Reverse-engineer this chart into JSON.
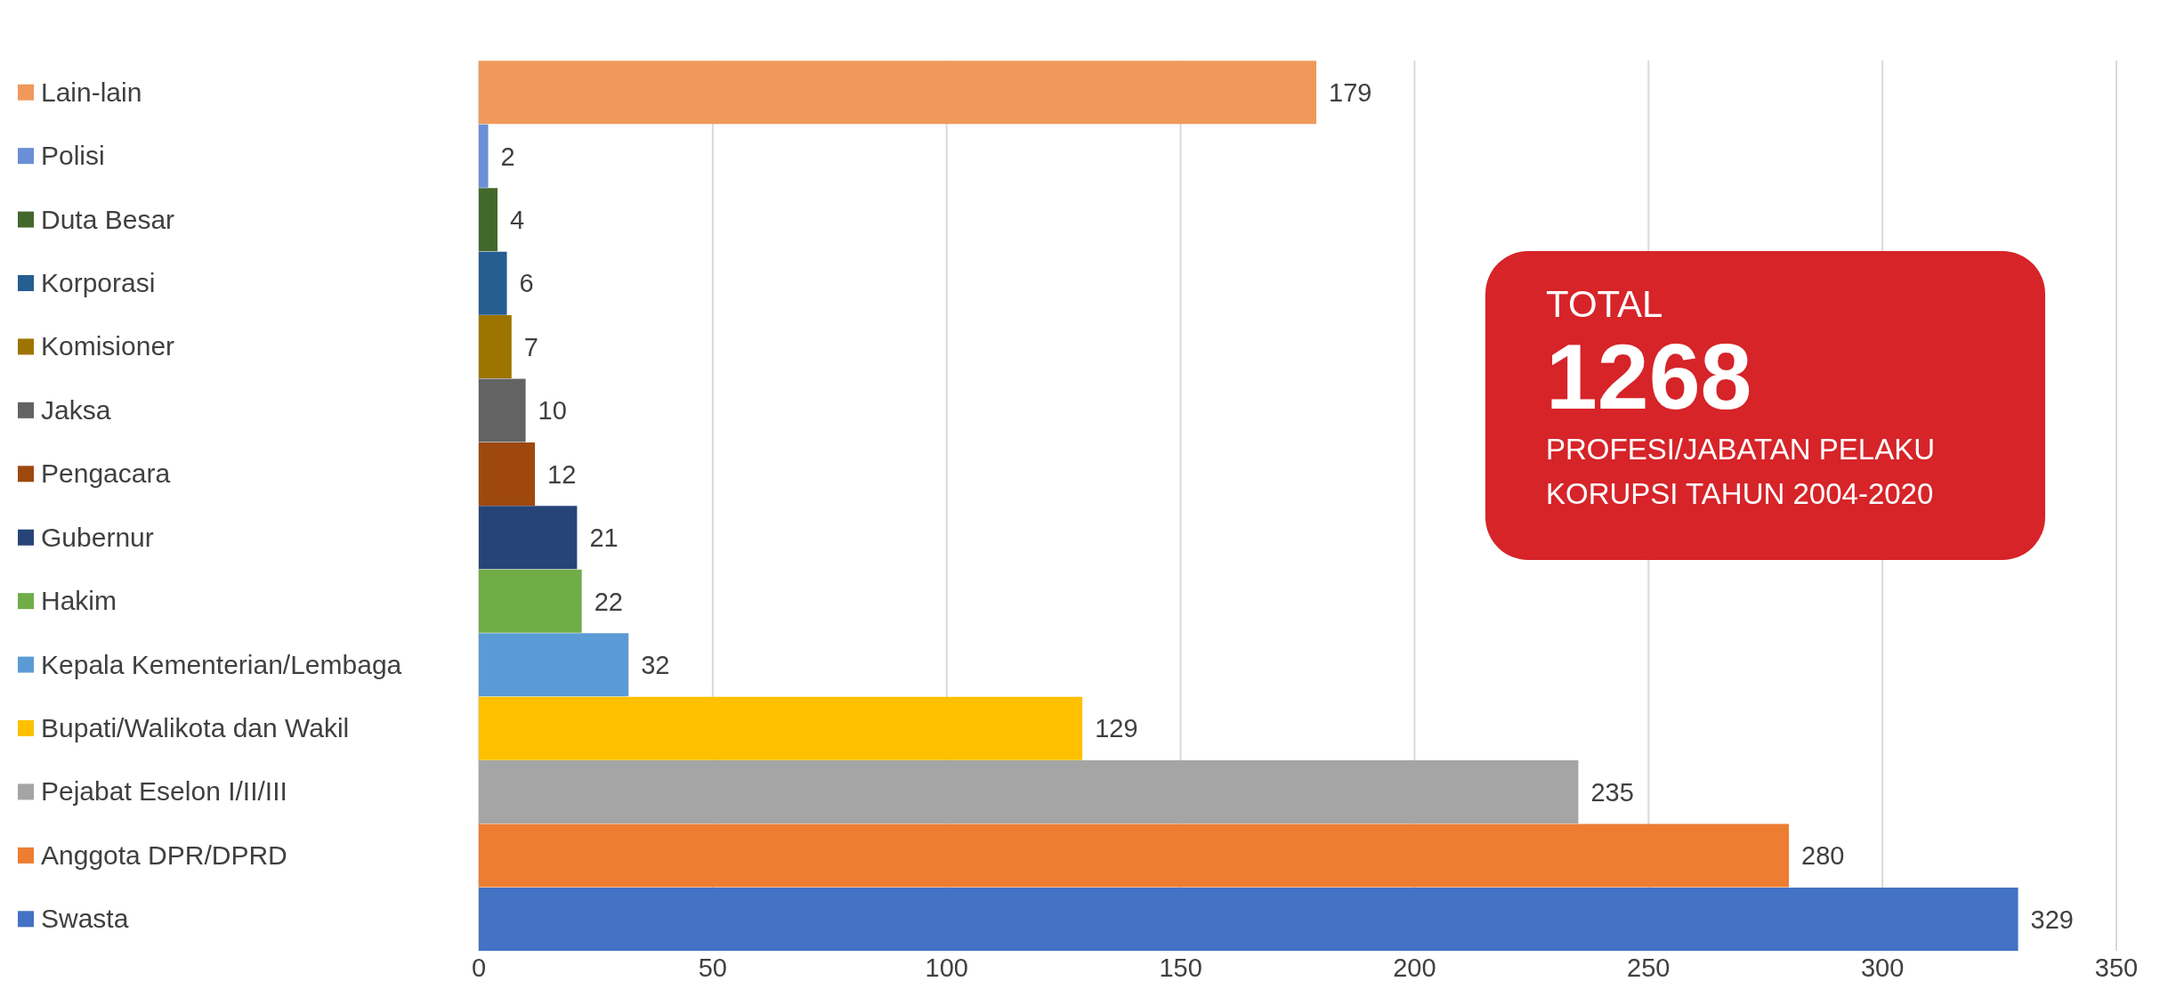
{
  "chart_data": {
    "type": "bar",
    "orientation": "horizontal",
    "categories": [
      "Lain-lain",
      "Polisi",
      "Duta Besar",
      "Korporasi",
      "Komisioner",
      "Jaksa",
      "Pengacara",
      "Gubernur",
      "Hakim",
      "Kepala Kementerian/Lembaga",
      "Bupati/Walikota dan Wakil",
      "Pejabat Eselon I/II/III",
      "Anggota DPR/DPRD",
      "Swasta"
    ],
    "values": [
      179,
      2,
      4,
      6,
      7,
      10,
      12,
      21,
      22,
      32,
      129,
      235,
      280,
      329
    ],
    "colors": [
      "#f0995a",
      "#6a8fd6",
      "#43682b",
      "#255e91",
      "#9e7400",
      "#636363",
      "#9e480e",
      "#264478",
      "#70ad47",
      "#5b9bd5",
      "#ffc000",
      "#a5a5a5",
      "#ed7d31",
      "#4472c4"
    ],
    "xlim": [
      0,
      350
    ],
    "xticks": [
      0,
      50,
      100,
      150,
      200,
      250,
      300,
      350
    ],
    "grid": "x",
    "data_labels": true,
    "annotations": [
      "TOTAL",
      "1268",
      "PROFESI/JABATAN PELAKU KORUPSI TAHUN 2004-2020"
    ]
  }
}
